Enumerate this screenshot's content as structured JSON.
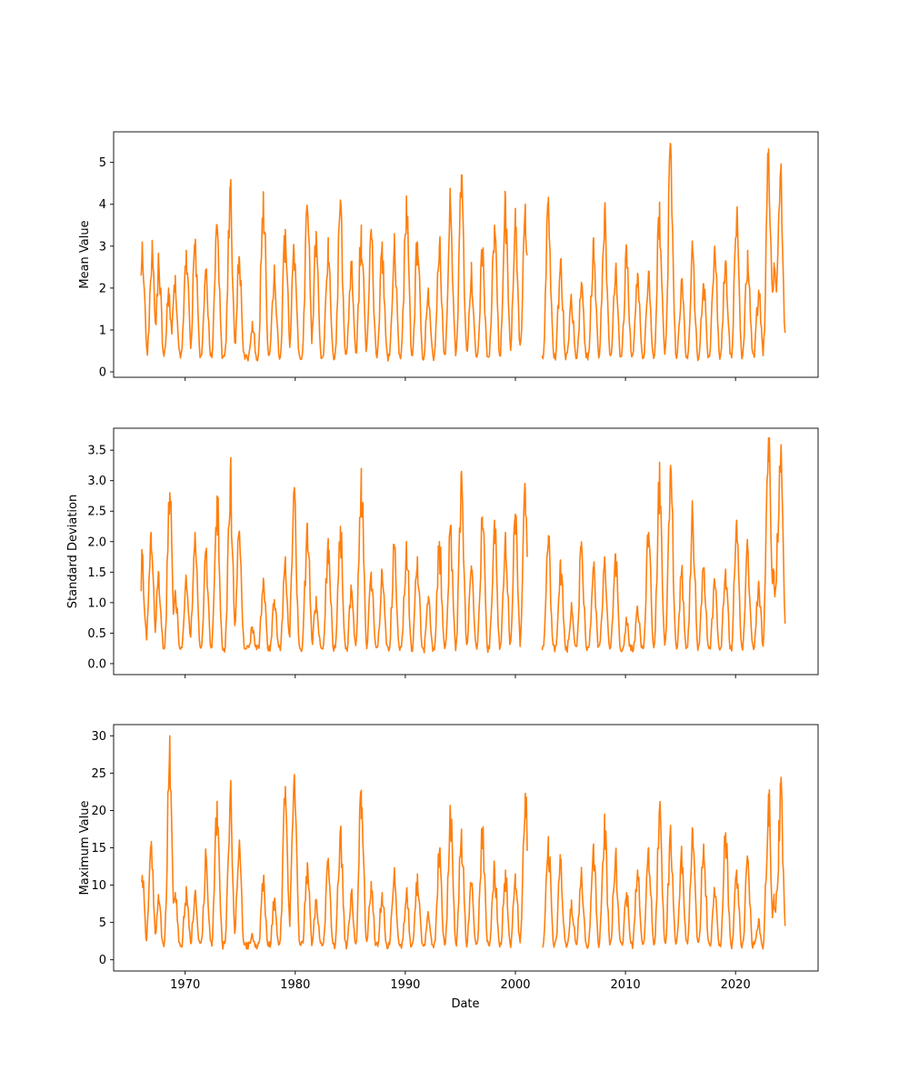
{
  "figure": {
    "x_label": "Date"
  },
  "chart_data": [
    {
      "type": "line",
      "ylabel": "Mean Value",
      "xlabel": "",
      "xlim": [
        1963.5,
        2027.5
      ],
      "ylim": [
        -0.13,
        5.73
      ],
      "yticks": [
        0,
        1,
        2,
        3,
        4,
        5
      ],
      "xticks": [
        1970,
        1980,
        1990,
        2000,
        2010,
        2020
      ],
      "x_tick_labels_shown": false,
      "grid": false,
      "line_color": "#ff7f0e",
      "gaps": [
        [
          2001.1,
          2002.4
        ]
      ],
      "peaks": [
        [
          1966.1,
          3.1
        ],
        [
          1967.0,
          2.95
        ],
        [
          1967.6,
          2.6
        ],
        [
          1968.5,
          2.0
        ],
        [
          1969.1,
          2.3
        ],
        [
          1970.1,
          2.9
        ],
        [
          1970.9,
          3.0
        ],
        [
          1971.9,
          2.3
        ],
        [
          1972.9,
          3.5
        ],
        [
          1974.1,
          4.4
        ],
        [
          1974.9,
          2.75
        ],
        [
          1976.1,
          1.2
        ],
        [
          1977.1,
          4.3
        ],
        [
          1978.1,
          2.55
        ],
        [
          1979.1,
          3.4
        ],
        [
          1979.9,
          2.85
        ],
        [
          1981.1,
          3.9
        ],
        [
          1981.9,
          3.35
        ],
        [
          1983.0,
          3.2
        ],
        [
          1984.1,
          4.1
        ],
        [
          1985.1,
          2.6
        ],
        [
          1986.0,
          3.5
        ],
        [
          1986.9,
          3.4
        ],
        [
          1987.9,
          3.1
        ],
        [
          1989.0,
          3.1
        ],
        [
          1990.1,
          4.2
        ],
        [
          1991.1,
          3.1
        ],
        [
          1992.1,
          2.0
        ],
        [
          1993.1,
          3.0
        ],
        [
          1994.1,
          4.05
        ],
        [
          1995.1,
          4.7
        ],
        [
          1996.0,
          2.4
        ],
        [
          1997.0,
          2.9
        ],
        [
          1998.1,
          3.5
        ],
        [
          1999.1,
          4.15
        ],
        [
          2000.0,
          3.9
        ],
        [
          2000.9,
          4.0
        ],
        [
          2003.0,
          4.1
        ],
        [
          2004.1,
          2.65
        ],
        [
          2005.1,
          1.7
        ],
        [
          2006.0,
          2.1
        ],
        [
          2007.1,
          3.2
        ],
        [
          2008.1,
          3.85
        ],
        [
          2009.1,
          2.45
        ],
        [
          2010.1,
          2.95
        ],
        [
          2011.1,
          2.35
        ],
        [
          2012.1,
          2.4
        ],
        [
          2013.1,
          4.05
        ],
        [
          2014.1,
          5.45
        ],
        [
          2015.1,
          2.2
        ],
        [
          2016.1,
          2.9
        ],
        [
          2017.1,
          2.1
        ],
        [
          2018.1,
          3.0
        ],
        [
          2019.1,
          2.65
        ],
        [
          2020.1,
          3.65
        ],
        [
          2021.1,
          2.9
        ],
        [
          2022.1,
          1.95
        ],
        [
          2023.0,
          5.0
        ],
        [
          2023.5,
          2.6
        ],
        [
          2023.9,
          3.5
        ],
        [
          2024.1,
          4.75
        ]
      ]
    },
    {
      "type": "line",
      "ylabel": "Standard Deviation",
      "xlabel": "",
      "xlim": [
        1963.5,
        2027.5
      ],
      "ylim": [
        -0.18,
        3.86
      ],
      "yticks": [
        0.0,
        0.5,
        1.0,
        1.5,
        2.0,
        2.5,
        3.0,
        3.5
      ],
      "xticks": [
        1970,
        1980,
        1990,
        2000,
        2010,
        2020
      ],
      "x_tick_labels_shown": false,
      "grid": false,
      "line_color": "#ff7f0e",
      "gaps": [
        [
          2001.1,
          2002.4
        ]
      ],
      "peaks": [
        [
          1966.1,
          1.75
        ],
        [
          1966.9,
          2.15
        ],
        [
          1967.6,
          1.5
        ],
        [
          1968.6,
          2.8
        ],
        [
          1969.1,
          1.2
        ],
        [
          1970.1,
          1.4
        ],
        [
          1970.9,
          2.15
        ],
        [
          1971.9,
          1.75
        ],
        [
          1972.9,
          2.75
        ],
        [
          1974.1,
          3.15
        ],
        [
          1974.9,
          2.15
        ],
        [
          1976.1,
          0.6
        ],
        [
          1977.1,
          1.4
        ],
        [
          1978.1,
          1.05
        ],
        [
          1979.1,
          1.75
        ],
        [
          1979.9,
          2.85
        ],
        [
          1981.1,
          2.3
        ],
        [
          1981.9,
          1.1
        ],
        [
          1983.0,
          2.05
        ],
        [
          1984.1,
          2.25
        ],
        [
          1985.1,
          1.2
        ],
        [
          1986.0,
          3.2
        ],
        [
          1986.9,
          1.5
        ],
        [
          1987.9,
          1.5
        ],
        [
          1989.0,
          1.95
        ],
        [
          1990.1,
          2.0
        ],
        [
          1991.1,
          1.75
        ],
        [
          1992.1,
          1.1
        ],
        [
          1993.1,
          2.0
        ],
        [
          1994.1,
          2.25
        ],
        [
          1995.1,
          3.15
        ],
        [
          1996.0,
          1.6
        ],
        [
          1997.0,
          2.4
        ],
        [
          1998.1,
          2.35
        ],
        [
          1999.1,
          2.15
        ],
        [
          2000.0,
          2.45
        ],
        [
          2000.9,
          2.85
        ],
        [
          2003.0,
          2.0
        ],
        [
          2004.1,
          1.7
        ],
        [
          2005.1,
          1.0
        ],
        [
          2006.0,
          1.95
        ],
        [
          2007.1,
          1.55
        ],
        [
          2008.1,
          1.75
        ],
        [
          2009.1,
          1.8
        ],
        [
          2010.1,
          0.7
        ],
        [
          2011.1,
          0.9
        ],
        [
          2012.1,
          2.15
        ],
        [
          2013.1,
          3.3
        ],
        [
          2014.1,
          3.25
        ],
        [
          2015.1,
          1.5
        ],
        [
          2016.1,
          2.45
        ],
        [
          2017.1,
          1.55
        ],
        [
          2018.1,
          1.35
        ],
        [
          2019.1,
          1.55
        ],
        [
          2020.1,
          2.35
        ],
        [
          2021.1,
          1.9
        ],
        [
          2022.1,
          1.35
        ],
        [
          2023.0,
          3.7
        ],
        [
          2023.5,
          1.5
        ],
        [
          2023.9,
          2.3
        ],
        [
          2024.1,
          3.35
        ]
      ]
    },
    {
      "type": "line",
      "ylabel": "Maximum Value",
      "xlabel": "Date",
      "xlim": [
        1963.5,
        2027.5
      ],
      "ylim": [
        -1.5,
        31.5
      ],
      "yticks": [
        0,
        5,
        10,
        15,
        20,
        25,
        30
      ],
      "xticks": [
        1970,
        1980,
        1990,
        2000,
        2010,
        2020
      ],
      "xtick_labels": [
        "1970",
        "1980",
        "1990",
        "2000",
        "2010",
        "2020"
      ],
      "x_tick_labels_shown": true,
      "grid": false,
      "line_color": "#ff7f0e",
      "gaps": [
        [
          2001.1,
          2002.4
        ]
      ],
      "peaks": [
        [
          1966.1,
          11.3
        ],
        [
          1966.9,
          14.9
        ],
        [
          1967.6,
          8.0
        ],
        [
          1968.6,
          30.0
        ],
        [
          1969.1,
          9.0
        ],
        [
          1970.1,
          9.8
        ],
        [
          1970.9,
          9.0
        ],
        [
          1971.9,
          14.0
        ],
        [
          1972.9,
          21.2
        ],
        [
          1974.1,
          22.6
        ],
        [
          1974.9,
          15.0
        ],
        [
          1976.1,
          3.5
        ],
        [
          1977.1,
          10.5
        ],
        [
          1978.1,
          8.0
        ],
        [
          1979.1,
          23.2
        ],
        [
          1979.9,
          24.5
        ],
        [
          1981.1,
          13.0
        ],
        [
          1981.9,
          8.0
        ],
        [
          1983.0,
          13.0
        ],
        [
          1984.1,
          17.5
        ],
        [
          1985.1,
          9.0
        ],
        [
          1986.0,
          22.7
        ],
        [
          1986.9,
          10.5
        ],
        [
          1987.9,
          9.0
        ],
        [
          1989.0,
          12.0
        ],
        [
          1990.1,
          9.0
        ],
        [
          1991.1,
          11.5
        ],
        [
          1992.1,
          6.0
        ],
        [
          1993.1,
          14.5
        ],
        [
          1994.1,
          19.8
        ],
        [
          1995.1,
          17.5
        ],
        [
          1996.0,
          10.0
        ],
        [
          1997.0,
          17.5
        ],
        [
          1998.1,
          12.5
        ],
        [
          1999.1,
          12.0
        ],
        [
          2000.0,
          11.5
        ],
        [
          2000.9,
          22.3
        ],
        [
          2003.0,
          16.5
        ],
        [
          2004.1,
          13.0
        ],
        [
          2005.1,
          8.0
        ],
        [
          2006.0,
          12.0
        ],
        [
          2007.1,
          15.5
        ],
        [
          2008.1,
          19.5
        ],
        [
          2009.1,
          14.2
        ],
        [
          2010.1,
          9.0
        ],
        [
          2011.1,
          12.0
        ],
        [
          2012.1,
          15.0
        ],
        [
          2013.1,
          20.3
        ],
        [
          2014.1,
          18.0
        ],
        [
          2015.1,
          15.2
        ],
        [
          2016.1,
          17.5
        ],
        [
          2017.1,
          15.5
        ],
        [
          2018.1,
          9.0
        ],
        [
          2019.1,
          17.0
        ],
        [
          2020.1,
          12.0
        ],
        [
          2021.1,
          13.5
        ],
        [
          2022.1,
          5.5
        ],
        [
          2023.0,
          22.2
        ],
        [
          2023.5,
          8.8
        ],
        [
          2023.9,
          12.0
        ],
        [
          2024.1,
          23.2
        ]
      ]
    }
  ]
}
